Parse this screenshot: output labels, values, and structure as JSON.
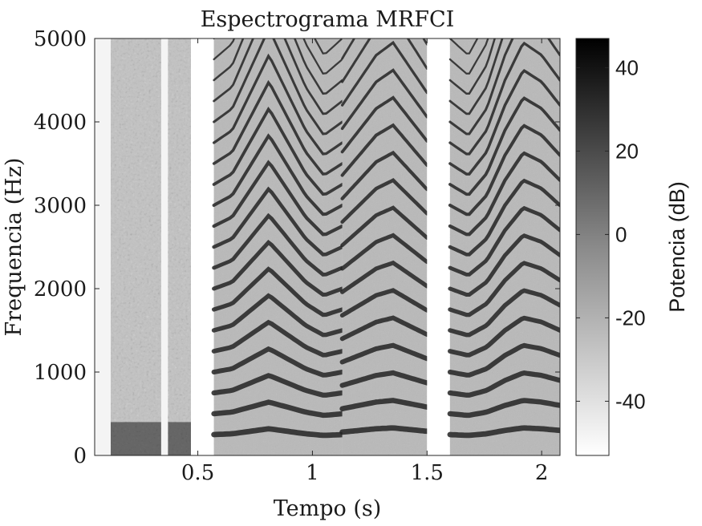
{
  "chart_data": {
    "type": "heatmap",
    "title": "Espectrograma MRFCI",
    "xlabel": "Tempo (s)",
    "ylabel": "Frequencia (Hz)",
    "xlim": [
      0.05,
      2.08
    ],
    "ylim": [
      0,
      5000
    ],
    "x_ticks": [
      0.5,
      1,
      1.5,
      2
    ],
    "x_tick_labels": [
      "0.5",
      "1",
      "1.5",
      "2"
    ],
    "y_ticks": [
      0,
      1000,
      2000,
      3000,
      4000,
      5000
    ],
    "y_tick_labels": [
      "0",
      "1000",
      "2000",
      "3000",
      "4000",
      "5000"
    ],
    "colormap": "gray-reversed",
    "colorbar": {
      "label": "Potencia (dB)",
      "range": [
        -53,
        47
      ],
      "ticks": [
        -40,
        -20,
        0,
        20,
        40
      ],
      "tick_labels": [
        "-40",
        "-20",
        "0",
        "20",
        "40"
      ]
    },
    "segments": [
      {
        "kind": "noise",
        "t_start": 0.12,
        "t_end": 0.34
      },
      {
        "kind": "noise",
        "t_start": 0.37,
        "t_end": 0.47
      },
      {
        "kind": "silence",
        "t_start": 0.47,
        "t_end": 0.57
      },
      {
        "kind": "harmonic",
        "t_start": 0.57,
        "t_end": 1.13,
        "f0_hz": [
          250,
          260,
          290,
          320,
          290,
          260,
          240,
          250
        ]
      },
      {
        "kind": "harmonic",
        "t_start": 1.13,
        "t_end": 1.5,
        "f0_hz": [
          280,
          300,
          320,
          330,
          310,
          290
        ]
      },
      {
        "kind": "silence",
        "t_start": 1.5,
        "t_end": 1.6
      },
      {
        "kind": "harmonic",
        "t_start": 1.6,
        "t_end": 2.08,
        "f0_hz": [
          250,
          240,
          260,
          300,
          330,
          320,
          300
        ]
      }
    ]
  }
}
